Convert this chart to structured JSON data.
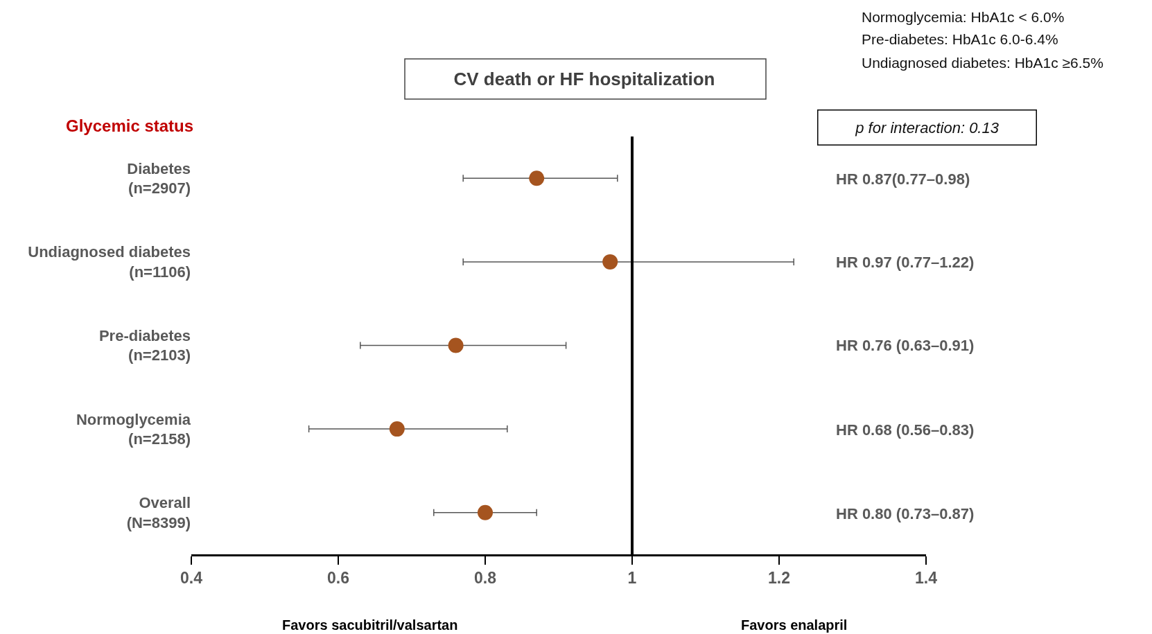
{
  "chart_data": {
    "type": "scatter",
    "orientation": "horizontal",
    "title": "CV death or HF hospitalization",
    "ylabel": "Glycemic status",
    "categories": [
      "Diabetes\n(n=2907)",
      "Undiagnosed diabetes\n(n=1106)",
      "Pre-diabetes\n(n=2103)",
      "Normoglycemia\n(n=2158)",
      "Overall\n(N=8399)"
    ],
    "values": [
      0.87,
      0.97,
      0.76,
      0.68,
      0.8
    ],
    "errors": [
      [
        0.77,
        0.98
      ],
      [
        0.77,
        1.22
      ],
      [
        0.63,
        0.91
      ],
      [
        0.56,
        0.83
      ],
      [
        0.73,
        0.87
      ]
    ],
    "color": "#a5541f",
    "marker": "circle",
    "xlim": [
      0.4,
      1.4
    ],
    "xticks": [
      0.4,
      0.6,
      0.8,
      1,
      1.2,
      1.4
    ],
    "ref_lines": [
      {
        "axis": "x",
        "value": 1,
        "color": "#000000"
      }
    ],
    "grid": false,
    "annotations": [
      "HR 0.87(0.77–0.98)",
      "HR 0.97 (0.77–1.22)",
      "HR 0.76 (0.63–0.91)",
      "HR 0.68 (0.56–0.83)",
      "HR 0.80 (0.73–0.87)",
      "Normoglycemia: HbA1c < 6.0%",
      "Pre-diabetes: HbA1c 6.0-6.4%",
      "Undiagnosed diabetes: HbA1c ≥6.5%",
      "p for interaction: 0.13",
      "Favors sacubitril/valsartan",
      "Favors enalapril"
    ]
  }
}
